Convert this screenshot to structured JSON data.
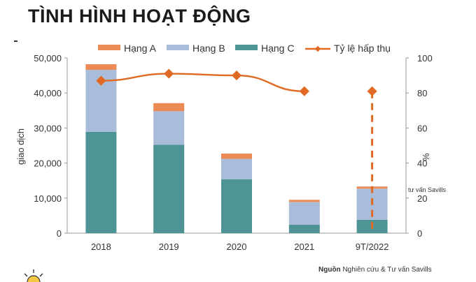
{
  "header": {
    "title": "TÌNH HÌNH HOẠT ĐỘNG"
  },
  "source": {
    "label": "Nguồn",
    "text": "Nghiên cứu & Tư vấn Savills"
  },
  "stray_label": "tư vấn Savills",
  "chart_data": {
    "type": "bar",
    "stacked": true,
    "categories": [
      "2018",
      "2019",
      "2020",
      "2021",
      "9T/2022"
    ],
    "series": [
      {
        "name": "Hạng C",
        "color": "#4e9494",
        "values": [
          28900,
          25200,
          15400,
          2400,
          3800
        ]
      },
      {
        "name": "Hạng B",
        "color": "#a9bcd9",
        "values": [
          17700,
          9600,
          5800,
          6500,
          8900
        ]
      },
      {
        "name": "Hạng A",
        "color": "#ec8a55",
        "values": [
          1600,
          2300,
          1500,
          600,
          600
        ]
      }
    ],
    "line_series": {
      "name": "Tỷ lệ hấp thụ",
      "color": "#e06a24",
      "values": [
        87,
        91,
        90,
        81,
        81
      ],
      "axis": "right"
    },
    "ylabel": "giao dịch",
    "y2label": "%",
    "ylim": [
      0,
      50000
    ],
    "y2lim": [
      0,
      100
    ],
    "yticks": [
      "0",
      "10,000",
      "20,000",
      "30,000",
      "40,000",
      "50,000"
    ],
    "y2ticks": [
      "0",
      "20",
      "40",
      "60",
      "80",
      "100"
    ],
    "legend": [
      "Hạng A",
      "Hạng B",
      "Hạng C",
      "Tỷ lệ hấp thụ"
    ],
    "legend_position": "top",
    "grid": false
  }
}
